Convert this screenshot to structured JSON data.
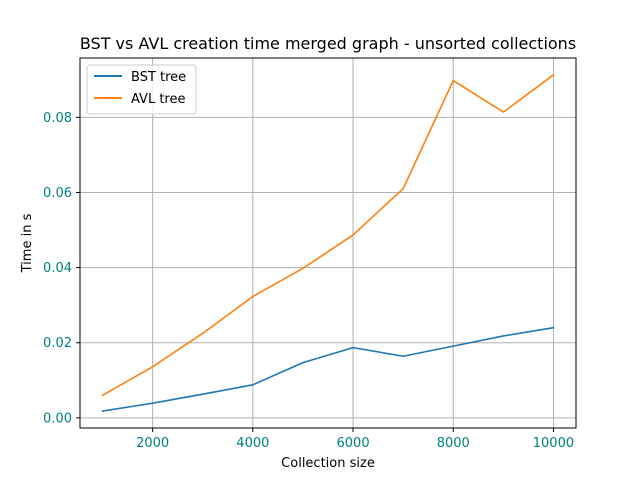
{
  "chart_data": {
    "type": "line",
    "title": "BST vs AVL creation time merged graph - unsorted collections",
    "xlabel": "Collection size",
    "ylabel": "Time in s",
    "xlim": [
      550,
      10450
    ],
    "ylim": [
      -0.0027,
      0.0958
    ],
    "xticks": [
      2000,
      4000,
      6000,
      8000,
      10000
    ],
    "yticks": [
      0.0,
      0.02,
      0.04,
      0.06,
      0.08
    ],
    "xtick_labels": [
      "2000",
      "4000",
      "6000",
      "8000",
      "10000"
    ],
    "ytick_labels": [
      "0.00",
      "0.02",
      "0.04",
      "0.06",
      "0.08"
    ],
    "grid": true,
    "legend_position": "upper-left",
    "x": [
      1000,
      2000,
      3000,
      4000,
      5000,
      6000,
      7000,
      8000,
      9000,
      10000
    ],
    "series": [
      {
        "name": "BST tree",
        "color": "#1f77b4",
        "values": [
          0.0018,
          0.0039,
          0.0063,
          0.0088,
          0.0147,
          0.0187,
          0.0164,
          0.0191,
          0.0218,
          0.024
        ]
      },
      {
        "name": "AVL tree",
        "color": "#ff7f0e",
        "values": [
          0.006,
          0.0136,
          0.0225,
          0.0323,
          0.0398,
          0.0487,
          0.061,
          0.0898,
          0.0814,
          0.0913
        ]
      }
    ]
  }
}
